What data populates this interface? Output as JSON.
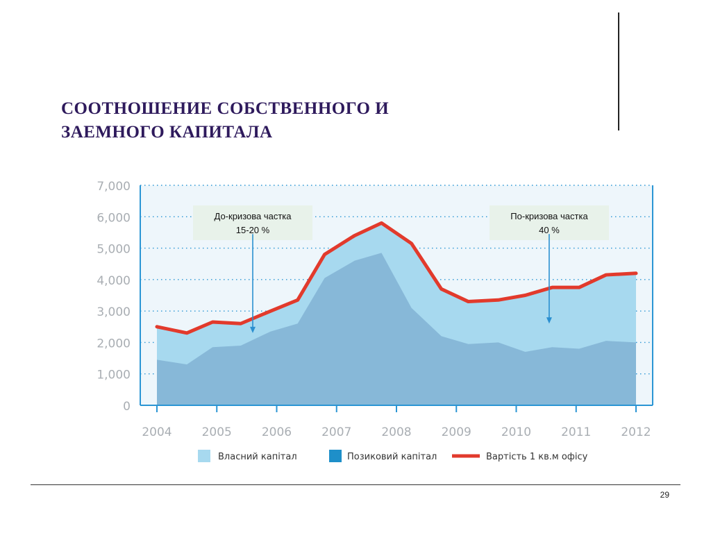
{
  "slide": {
    "title_line1": "СООТНОШЕНИЕ  СОБСТВЕННОГО  И",
    "title_line2": "ЗАЕМНОГО  КАПИТАЛА",
    "page_number": "29"
  },
  "colors": {
    "own_capital": "#a7d9ef",
    "borrowed_capital": "#87b8d8",
    "price_line": "#e23a2c",
    "axis": "#2a95d4",
    "plot_bg": "#eef6fb",
    "arrow": "#2a8fd0"
  },
  "chart_data": {
    "type": "area",
    "x": [
      2004.0,
      2004.5,
      2004.93,
      2005.4,
      2005.9,
      2006.35,
      2006.8,
      2007.3,
      2007.75,
      2008.25,
      2008.75,
      2009.2,
      2009.7,
      2010.15,
      2010.6,
      2011.05,
      2011.5,
      2012.0
    ],
    "x_ticks": [
      "2004",
      "2005",
      "2006",
      "2007",
      "2008",
      "2009",
      "2010",
      "2011",
      "2012"
    ],
    "y_ticks": [
      "7,000",
      "6,000",
      "5,000",
      "4,000",
      "3,000",
      "2,000",
      "1,000",
      "0"
    ],
    "ylim": [
      0,
      7000
    ],
    "xlim": [
      2004,
      2012
    ],
    "grid": true,
    "legend_position": "bottom",
    "series": [
      {
        "name": "Власний капітал",
        "type": "area",
        "values": [
          2500,
          2300,
          2650,
          2600,
          3000,
          3350,
          4800,
          5400,
          5800,
          5150,
          3700,
          3300,
          3350,
          3500,
          3750,
          3750,
          4150,
          4200
        ]
      },
      {
        "name": "Позиковий капітал",
        "type": "area",
        "values": [
          1450,
          1300,
          1850,
          1900,
          2350,
          2600,
          4050,
          4600,
          4850,
          3100,
          2200,
          1950,
          2000,
          1700,
          1850,
          1800,
          2050,
          2000
        ]
      },
      {
        "name": "Вартість 1 кв.м офісу",
        "type": "line",
        "values": [
          2500,
          2300,
          2650,
          2600,
          3000,
          3350,
          4800,
          5400,
          5800,
          5150,
          3700,
          3300,
          3350,
          3500,
          3750,
          3750,
          4150,
          4200
        ]
      }
    ],
    "annotations": [
      {
        "line1": "До-кризова частка",
        "line2": "15-20 %",
        "x": 2005.6,
        "y_from": 5450,
        "y_to": 2300
      },
      {
        "line1": "По-кризова частка",
        "line2": "40 %",
        "x": 2010.55,
        "y_from": 5450,
        "y_to": 2600
      }
    ]
  }
}
